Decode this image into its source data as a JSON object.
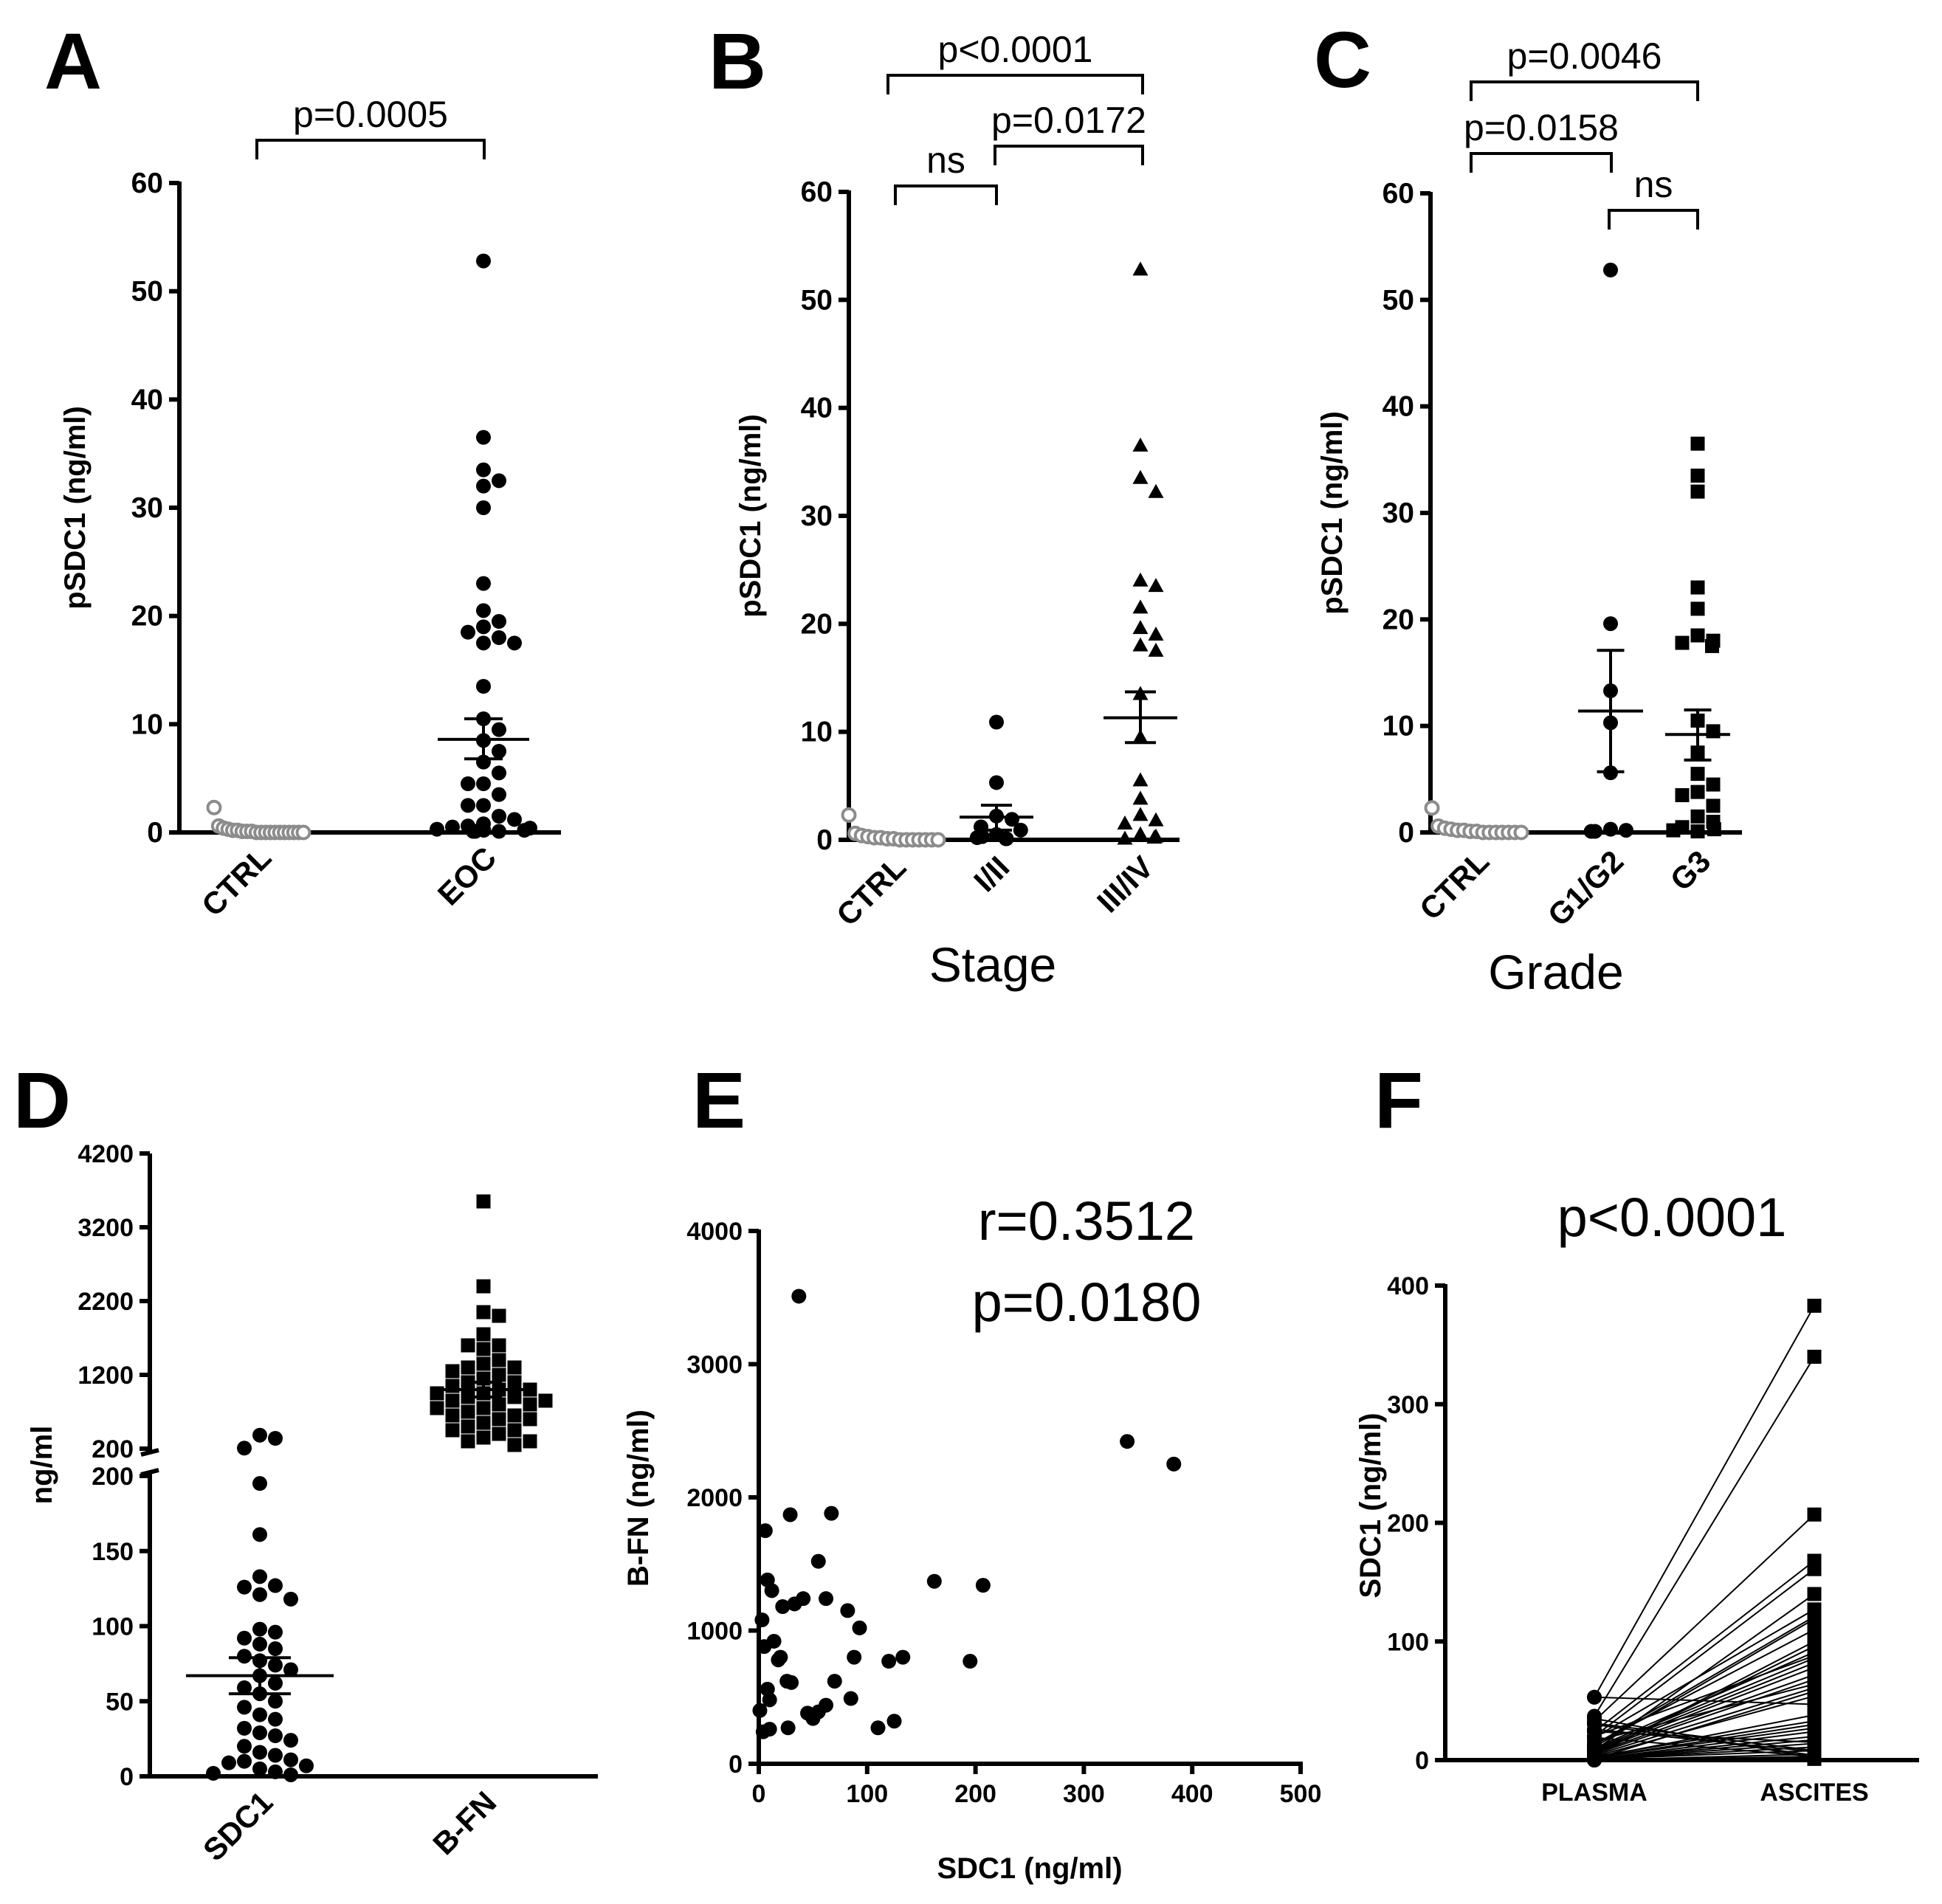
{
  "chart_data": [
    {
      "panel": "A",
      "type": "scatter",
      "ylabel": "pSDC1 (ng/ml)",
      "ylim": [
        0,
        60
      ],
      "yticks": [
        0,
        10,
        20,
        30,
        40,
        50,
        60
      ],
      "categories": [
        "CTRL",
        "EOC"
      ],
      "series": [
        {
          "name": "CTRL",
          "marker": "open-circle",
          "color": "#8c8c8c",
          "values": [
            2.3,
            0.6,
            0.4,
            0.3,
            0.2,
            0.2,
            0.1,
            0.1,
            0.1,
            0,
            0,
            0,
            0,
            0,
            0,
            0,
            0,
            0,
            0,
            0
          ]
        },
        {
          "name": "EOC",
          "marker": "circle",
          "color": "#000000",
          "mean": 8.6,
          "sem_low": 6.8,
          "sem_high": 10.5,
          "values": [
            52.8,
            36.5,
            33.5,
            32.5,
            32,
            30,
            23,
            20.5,
            19.5,
            19,
            18.5,
            18,
            17.5,
            17.5,
            13.5,
            10.5,
            9.5,
            8.5,
            7.5,
            6.5,
            5.5,
            4.5,
            4.5,
            3.5,
            2.5,
            2.5,
            1.5,
            1.2,
            0.8,
            0.6,
            0.5,
            0.4,
            0.3,
            0.2,
            0.2,
            0.1,
            0.1,
            0.1
          ]
        }
      ],
      "comparisons": [
        {
          "from": "CTRL",
          "to": "EOC",
          "label": "p=0.0005"
        }
      ]
    },
    {
      "panel": "B",
      "type": "scatter",
      "ylabel": "pSDC1 (ng/ml)",
      "xlabel": "Stage",
      "ylim": [
        0,
        60
      ],
      "yticks": [
        0,
        10,
        20,
        30,
        40,
        50,
        60
      ],
      "categories": [
        "CTRL",
        "I/II",
        "III/IV"
      ],
      "series": [
        {
          "name": "CTRL",
          "marker": "open-circle",
          "color": "#8c8c8c",
          "values": [
            2.3,
            0.6,
            0.4,
            0.3,
            0.2,
            0.2,
            0.1,
            0.1,
            0,
            0,
            0,
            0,
            0,
            0,
            0
          ]
        },
        {
          "name": "I/II",
          "marker": "circle",
          "color": "#000000",
          "mean": 2.1,
          "sem_low": 0.9,
          "sem_high": 3.2,
          "values": [
            10.9,
            5.3,
            2.2,
            1.9,
            1.2,
            0.9,
            0.5,
            0.3,
            0.2,
            0.1,
            0.1
          ]
        },
        {
          "name": "III/IV",
          "marker": "triangle",
          "color": "#000000",
          "mean": 11.3,
          "sem_low": 9,
          "sem_high": 13.7,
          "values": [
            52.8,
            36.5,
            33.5,
            32.2,
            24,
            23.5,
            21.5,
            19.6,
            19,
            18,
            17.5,
            13.5,
            9.5,
            5.5,
            3.8,
            2.3,
            1.8,
            1.5,
            0.5,
            0.3,
            0.2,
            0.1
          ]
        }
      ],
      "comparisons": [
        {
          "from": "CTRL",
          "to": "III/IV",
          "label": "p<0.0001"
        },
        {
          "from": "I/II",
          "to": "III/IV",
          "label": "p=0.0172"
        },
        {
          "from": "CTRL",
          "to": "I/II",
          "label": "ns"
        }
      ]
    },
    {
      "panel": "C",
      "type": "scatter",
      "ylabel": "pSDC1 (ng/ml)",
      "xlabel": "Grade",
      "ylim": [
        0,
        60
      ],
      "yticks": [
        0,
        10,
        20,
        30,
        40,
        50,
        60
      ],
      "categories": [
        "CTRL",
        "G1/G2",
        "G3"
      ],
      "series": [
        {
          "name": "CTRL",
          "marker": "open-circle",
          "color": "#8c8c8c",
          "values": [
            2.3,
            0.6,
            0.4,
            0.3,
            0.2,
            0.2,
            0.1,
            0.1,
            0,
            0,
            0,
            0,
            0,
            0,
            0
          ]
        },
        {
          "name": "G1/G2",
          "marker": "circle",
          "color": "#000000",
          "mean": 11.4,
          "sem_low": 5.7,
          "sem_high": 17.1,
          "values": [
            52.8,
            19.6,
            13.3,
            10.3,
            5.6,
            0.3,
            0.2,
            0.1,
            0.1
          ]
        },
        {
          "name": "G3",
          "marker": "square",
          "color": "#000000",
          "mean": 9.2,
          "sem_low": 6.8,
          "sem_high": 11.5,
          "values": [
            36.5,
            33.5,
            32,
            23,
            21,
            18.5,
            18,
            17.8,
            17.5,
            10.5,
            9.5,
            7.5,
            5.5,
            4.5,
            3.8,
            3.5,
            2.5,
            1.5,
            1,
            0.5,
            0.3,
            0.2,
            0.1
          ]
        }
      ],
      "comparisons": [
        {
          "from": "CTRL",
          "to": "G3",
          "label": "p=0.0046"
        },
        {
          "from": "CTRL",
          "to": "G1/G2",
          "label": "p=0.0158"
        },
        {
          "from": "G1/G2",
          "to": "G3",
          "label": "ns"
        }
      ]
    },
    {
      "panel": "D",
      "type": "scatter",
      "ylabel": "ng/ml",
      "y_lower_ticks": [
        0,
        50,
        100,
        150,
        200
      ],
      "y_upper_ticks": [
        200,
        1200,
        2200,
        3200,
        4200
      ],
      "y_break": true,
      "categories": [
        "SDC1",
        "B-FN"
      ],
      "series": [
        {
          "name": "SDC1",
          "marker": "circle",
          "color": "#000000",
          "mean": 67,
          "sem_low": 55,
          "sem_high": 79,
          "values": [
            383,
            340,
            207,
            195,
            161,
            133,
            127,
            126,
            121,
            118,
            98,
            96,
            92,
            88,
            85,
            80,
            77,
            74,
            71,
            67,
            62,
            59,
            55,
            50,
            46,
            41,
            38,
            32,
            29,
            27,
            24,
            20,
            16,
            14,
            11,
            10,
            9,
            7,
            5,
            3,
            2,
            1
          ]
        },
        {
          "name": "B-FN",
          "marker": "square",
          "color": "#000000",
          "mean": 1000,
          "sem_low": 900,
          "sem_high": 1100,
          "values": [
            3550,
            2400,
            2050,
            2000,
            1750,
            1600,
            1600,
            1550,
            1400,
            1350,
            1300,
            1300,
            1250,
            1200,
            1150,
            1100,
            1100,
            1050,
            1000,
            1000,
            950,
            950,
            900,
            900,
            850,
            850,
            800,
            800,
            750,
            750,
            700,
            650,
            650,
            600,
            600,
            550,
            500,
            450,
            450,
            400,
            350,
            300,
            300,
            250
          ]
        }
      ]
    },
    {
      "panel": "E",
      "type": "scatter",
      "xlabel": "SDC1 (ng/ml)",
      "ylabel": "B-FN (ng/ml)",
      "xlim": [
        0,
        500
      ],
      "ylim": [
        0,
        4000
      ],
      "xticks": [
        0,
        100,
        200,
        300,
        400,
        500
      ],
      "yticks": [
        0,
        1000,
        2000,
        3000,
        4000
      ],
      "annotations": [
        "r=0.3512",
        "p=0.0180"
      ],
      "points": [
        [
          3,
          1080
        ],
        [
          5,
          880
        ],
        [
          6,
          1750
        ],
        [
          8,
          1380
        ],
        [
          12,
          1300
        ],
        [
          14,
          920
        ],
        [
          18,
          780
        ],
        [
          20,
          800
        ],
        [
          22,
          1180
        ],
        [
          29,
          1870
        ],
        [
          30,
          610
        ],
        [
          33,
          1200
        ],
        [
          37,
          3510
        ],
        [
          41,
          1240
        ],
        [
          55,
          1520
        ],
        [
          62,
          1240
        ],
        [
          67,
          1880
        ],
        [
          70,
          620
        ],
        [
          82,
          1150
        ],
        [
          93,
          1020
        ],
        [
          88,
          800
        ],
        [
          120,
          770
        ],
        [
          133,
          800
        ],
        [
          162,
          1370
        ],
        [
          195,
          770
        ],
        [
          207,
          1340
        ],
        [
          340,
          2420
        ],
        [
          383,
          2250
        ],
        [
          4,
          240
        ],
        [
          10,
          260
        ],
        [
          10,
          480
        ],
        [
          27,
          270
        ],
        [
          26,
          620
        ],
        [
          50,
          340
        ],
        [
          55,
          390
        ],
        [
          62,
          440
        ],
        [
          85,
          490
        ],
        [
          110,
          270
        ],
        [
          125,
          320
        ],
        [
          8,
          560
        ],
        [
          45,
          380
        ],
        [
          1,
          400
        ]
      ]
    },
    {
      "panel": "F",
      "type": "line",
      "ylabel": "SDC1 (ng/ml)",
      "ylim": [
        0,
        400
      ],
      "yticks": [
        0,
        100,
        200,
        300,
        400
      ],
      "categories": [
        "PLASMA",
        "ASCITES"
      ],
      "title": "p<0.0001",
      "pairs": [
        [
          53,
          383
        ],
        [
          37,
          340
        ],
        [
          33,
          207
        ],
        [
          24,
          168
        ],
        [
          20,
          161
        ],
        [
          19,
          127
        ],
        [
          13,
          121
        ],
        [
          11,
          119
        ],
        [
          10,
          91
        ],
        [
          9,
          86
        ],
        [
          8,
          82
        ],
        [
          7,
          78
        ],
        [
          6,
          72
        ],
        [
          5,
          68
        ],
        [
          4,
          61
        ],
        [
          3,
          54
        ],
        [
          3,
          33
        ],
        [
          2,
          30
        ],
        [
          2,
          27
        ],
        [
          1,
          24
        ],
        [
          1,
          20
        ],
        [
          1,
          17
        ],
        [
          1,
          14
        ],
        [
          1,
          11
        ],
        [
          1,
          8
        ],
        [
          0,
          5
        ],
        [
          0,
          3
        ],
        [
          0,
          2
        ],
        [
          5,
          96
        ],
        [
          13,
          110
        ],
        [
          16,
          64
        ],
        [
          20,
          88
        ],
        [
          24,
          15
        ],
        [
          26,
          7
        ],
        [
          30,
          4
        ],
        [
          35,
          2
        ],
        [
          53,
          47
        ],
        [
          8,
          140
        ],
        [
          4,
          100
        ],
        [
          2,
          38
        ],
        [
          1,
          58
        ],
        [
          0,
          1
        ],
        [
          31,
          8
        ],
        [
          19,
          3
        ]
      ]
    }
  ]
}
